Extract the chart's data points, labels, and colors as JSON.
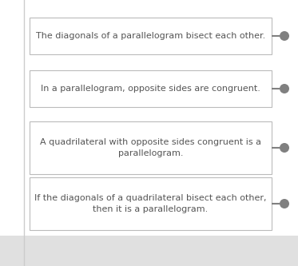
{
  "background_color": "#ffffff",
  "main_bg": "#ffffff",
  "box_bg": "#ffffff",
  "box_edge_color": "#bbbbbb",
  "text_color": "#555555",
  "bullet_color": "#808080",
  "line_color": "#bbbbbb",
  "left_line_color": "#cccccc",
  "bottom_bg": "#e0e0e0",
  "boxes": [
    {
      "text": "The diagonals of a parallelogram bisect each other.",
      "multiline": false
    },
    {
      "text": "In a parallelogram, opposite sides are congruent.",
      "multiline": false
    },
    {
      "text": "A quadrilateral with opposite sides congruent is a\nparallelogram.",
      "multiline": true
    },
    {
      "text": "If the diagonals of a quadrilateral bisect each other,\nthen it is a parallelogram.",
      "multiline": true
    }
  ],
  "font_size": 8.0,
  "fig_width": 3.73,
  "fig_height": 3.33,
  "dpi": 100
}
